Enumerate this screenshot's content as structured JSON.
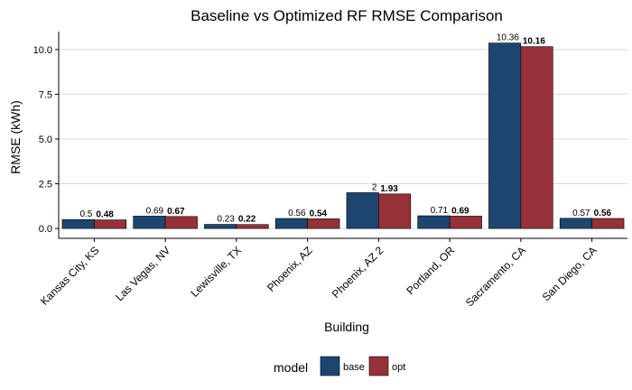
{
  "chart_data": {
    "type": "bar",
    "title": "Baseline vs Optimized RF RMSE Comparison",
    "xlabel": "Building",
    "ylabel": "RMSE (kWh)",
    "ylim": [
      -0.55,
      11.0
    ],
    "yticks": [
      "0.0",
      "2.5",
      "5.0",
      "7.5",
      "10.0"
    ],
    "grid": "horizontal",
    "categories": [
      "Kansas City, KS",
      "Las Vegas, NV",
      "Lewisville, TX",
      "Phoenix, AZ",
      "Phoenix, AZ 2",
      "Portland, OR",
      "Sacramento, CA",
      "San Diego, CA"
    ],
    "series": [
      {
        "name": "base",
        "values": [
          0.5,
          0.69,
          0.23,
          0.56,
          2,
          0.71,
          10.36,
          0.57
        ],
        "labels": [
          "0.5",
          "0.69",
          "0.23",
          "0.56",
          "2",
          "0.71",
          "10.36",
          "0.57"
        ],
        "color": "#1c4670"
      },
      {
        "name": "opt",
        "values": [
          0.48,
          0.67,
          0.22,
          0.54,
          1.93,
          0.69,
          10.16,
          0.56
        ],
        "labels": [
          "0.48",
          "0.67",
          "0.22",
          "0.54",
          "1.93",
          "0.69",
          "10.16",
          "0.56"
        ],
        "color": "#963139"
      }
    ],
    "legend": {
      "title": "model",
      "position": "bottom"
    }
  }
}
